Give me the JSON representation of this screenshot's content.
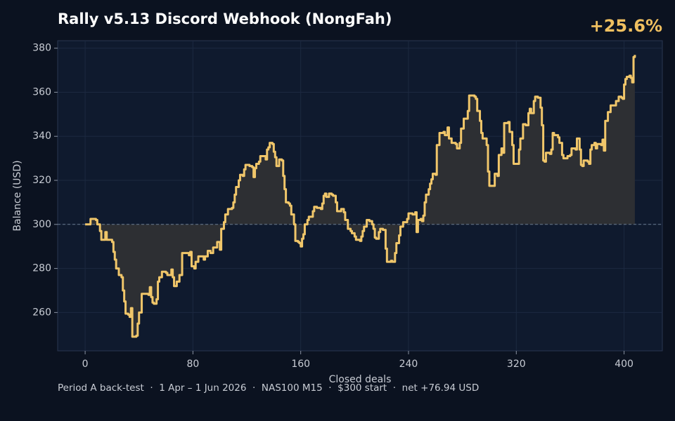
{
  "chart_data": {
    "type": "step",
    "title": "Rally v5.13 Discord Webhook (NongFah)",
    "badge": "+25.6%",
    "xlabel": "Closed deals",
    "ylabel": "Balance (USD)",
    "footnote": "Period A back-test  ·  1 Apr – 1 Jun 2026  ·  NAS100 M15  ·  $300 start  ·  net +76.94 USD",
    "baseline": 300,
    "grid": true,
    "xlim": [
      -20.4,
      428.4
    ],
    "ylim": [
      242.6,
      383.4
    ],
    "xticks": [
      0,
      80,
      160,
      240,
      320,
      400
    ],
    "yticks": [
      260,
      280,
      300,
      320,
      340,
      360,
      380
    ],
    "series": [
      {
        "color": "#f0c66a",
        "fill": "#2d2f33",
        "x": [
          0,
          4,
          8,
          9,
          11,
          12,
          14,
          15,
          16,
          20,
          21,
          22,
          23,
          25,
          27,
          28,
          29,
          30,
          32,
          33,
          34,
          35,
          38,
          39,
          40,
          42,
          47,
          48,
          49,
          50,
          51,
          53,
          54,
          55,
          57,
          60,
          61,
          64,
          65,
          66,
          68,
          70,
          72,
          77,
          78,
          79,
          81,
          82,
          84,
          88,
          89,
          91,
          93,
          95,
          98,
          100,
          101,
          103,
          104,
          106,
          109,
          110,
          111,
          112,
          114,
          115,
          117,
          118,
          119,
          122,
          124,
          125,
          126,
          127,
          129,
          130,
          134,
          135,
          136,
          137,
          139,
          140,
          141,
          142,
          144,
          146,
          147,
          148,
          149,
          151,
          152,
          153,
          155,
          156,
          158,
          159,
          160,
          161,
          162,
          163,
          165,
          166,
          168,
          169,
          170,
          172,
          175,
          176,
          177,
          178,
          179,
          181,
          183,
          184,
          186,
          187,
          190,
          192,
          193,
          195,
          197,
          198,
          200,
          201,
          204,
          205,
          206,
          207,
          209,
          211,
          213,
          214,
          215,
          216,
          218,
          219,
          221,
          223,
          224,
          227,
          228,
          230,
          231,
          233,
          234,
          236,
          239,
          240,
          243,
          245,
          246,
          247,
          249,
          250,
          251,
          252,
          253,
          255,
          256,
          257,
          258,
          260,
          261,
          263,
          266,
          267,
          269,
          270,
          272,
          275,
          276,
          278,
          279,
          281,
          284,
          285,
          289,
          290,
          291,
          293,
          294,
          295,
          298,
          299,
          300,
          302,
          304,
          306,
          307,
          309,
          310,
          311,
          314,
          315,
          317,
          318,
          321,
          322,
          323,
          325,
          327,
          329,
          330,
          331,
          333,
          334,
          336,
          338,
          339,
          340,
          341,
          342,
          345,
          346,
          347,
          348,
          351,
          352,
          354,
          355,
          358,
          360,
          361,
          364,
          365,
          367,
          368,
          369,
          370,
          373,
          374,
          375,
          376,
          378,
          379,
          380,
          383,
          384,
          385,
          386,
          388,
          390,
          394,
          396,
          398,
          399,
          400,
          401,
          402,
          404,
          405,
          406,
          407,
          408
        ],
        "values": [
          300,
          302.5,
          302,
          300,
          297,
          293,
          293,
          296.5,
          293,
          292,
          287.5,
          284,
          280,
          277,
          276,
          270,
          265,
          259.5,
          259,
          258,
          262,
          249,
          249.5,
          255,
          260,
          268.5,
          268,
          271.5,
          267,
          264.5,
          264,
          266,
          274,
          276,
          278.5,
          278,
          277,
          279.5,
          276,
          272,
          274,
          277,
          287,
          286,
          287.5,
          281,
          280,
          283,
          285.5,
          284,
          285.5,
          288,
          287,
          289.5,
          292,
          288.5,
          298,
          301,
          304.5,
          307,
          307.5,
          310,
          313.5,
          317,
          320,
          322.5,
          322,
          325,
          327,
          326.5,
          326,
          321.5,
          325.5,
          327.5,
          328.5,
          331,
          329.5,
          334,
          335,
          337,
          336.5,
          333,
          330.5,
          326.5,
          329.5,
          329,
          322,
          316,
          310,
          309.5,
          308.5,
          304.5,
          300,
          292.5,
          292,
          291.5,
          290,
          293.5,
          295.5,
          300,
          302,
          303.5,
          303.5,
          306,
          308,
          307.5,
          307,
          309.5,
          313,
          314,
          312.5,
          314,
          313.5,
          313,
          310,
          306,
          307,
          305.5,
          302,
          298,
          297,
          296,
          294.5,
          293,
          292.5,
          294.5,
          297,
          299,
          302,
          301.5,
          300,
          298,
          294,
          293.5,
          296.5,
          298,
          297.5,
          289,
          283,
          283.5,
          283,
          287,
          291.5,
          295,
          299,
          301,
          302.5,
          305,
          304.5,
          305.5,
          296.5,
          302,
          302.5,
          301.5,
          304,
          310,
          313.5,
          316,
          318.5,
          320.5,
          323,
          322.5,
          336,
          341.5,
          342,
          340.5,
          344,
          339,
          337,
          336.5,
          334.5,
          337,
          343.5,
          348,
          351.5,
          358.5,
          358,
          357,
          351.5,
          347,
          341.5,
          339,
          336,
          324,
          317.5,
          317.5,
          323,
          322,
          331.5,
          334.5,
          332.5,
          346,
          346.5,
          342,
          336,
          327.5,
          327.5,
          334,
          339,
          345.5,
          345,
          350.5,
          352.5,
          350.5,
          356,
          358,
          357.5,
          353,
          345,
          329,
          328.5,
          332.5,
          332,
          334,
          341.5,
          340.5,
          339.5,
          337,
          331.5,
          330,
          331,
          331.5,
          334.5,
          334,
          339,
          334,
          327,
          326.5,
          329,
          328.5,
          327.5,
          334,
          336,
          337,
          334.5,
          336.5,
          336,
          338.5,
          333.5,
          347,
          351,
          354,
          356,
          358,
          357.5,
          357,
          363.5,
          366,
          367,
          367.5,
          366.5,
          364.5,
          376,
          376.94
        ]
      }
    ]
  }
}
